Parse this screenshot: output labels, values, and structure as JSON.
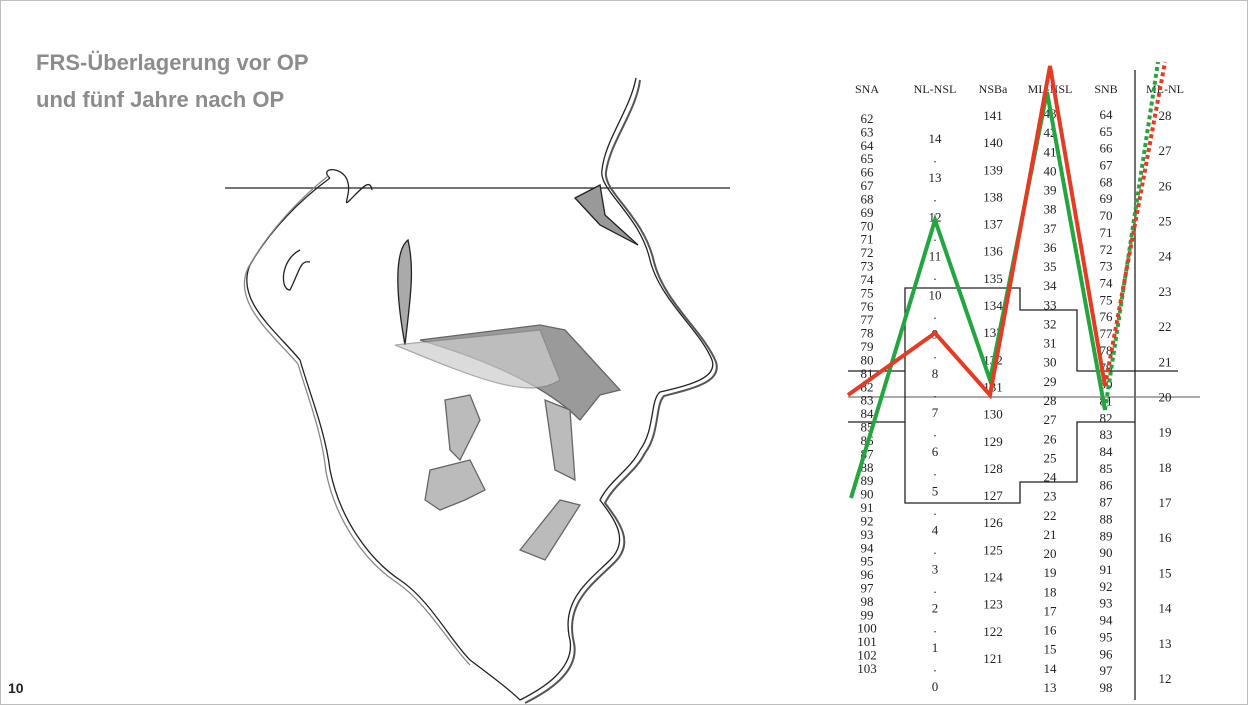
{
  "title": {
    "lines": [
      "FRS-Überlagerung vor OP",
      "und fünf Jahre nach OP"
    ]
  },
  "figure_number": "10",
  "table": {
    "headers": [
      "SNA",
      "NL-NSL",
      "NSBa",
      "ML-NSL",
      "SNB",
      "ML-NL"
    ],
    "columns": [
      [
        62,
        63,
        64,
        65,
        66,
        67,
        68,
        69,
        70,
        71,
        72,
        73,
        74,
        75,
        76,
        77,
        78,
        79,
        80,
        81,
        82,
        83,
        84,
        85,
        86,
        87,
        88,
        89,
        90,
        91,
        92,
        93,
        94,
        95,
        96,
        97,
        98,
        99,
        100,
        101,
        102,
        103
      ],
      [
        14,
        ".",
        13,
        ".",
        12,
        ".",
        11,
        ".",
        10,
        ".",
        9,
        ".",
        8,
        ".",
        7,
        ".",
        6,
        ".",
        5,
        ".",
        4,
        ".",
        3,
        ".",
        2,
        ".",
        1,
        ".",
        0
      ],
      [
        141,
        140,
        139,
        138,
        137,
        136,
        135,
        134,
        133,
        132,
        131,
        130,
        129,
        128,
        127,
        126,
        125,
        124,
        123,
        122,
        121
      ],
      [
        43,
        42,
        41,
        40,
        39,
        38,
        37,
        36,
        35,
        34,
        33,
        32,
        31,
        30,
        29,
        28,
        27,
        26,
        25,
        24,
        23,
        22,
        21,
        20,
        19,
        18,
        17,
        16,
        15,
        14,
        13
      ],
      [
        64,
        65,
        66,
        67,
        68,
        69,
        70,
        71,
        72,
        73,
        74,
        75,
        76,
        77,
        78,
        79,
        80,
        81,
        82,
        83,
        84,
        85,
        86,
        87,
        88,
        89,
        90,
        91,
        92,
        93,
        94,
        95,
        96,
        97,
        98
      ],
      [
        28,
        27,
        26,
        25,
        24,
        23,
        22,
        21,
        20,
        19,
        18,
        17,
        16,
        15,
        14,
        13,
        12
      ]
    ]
  }
}
